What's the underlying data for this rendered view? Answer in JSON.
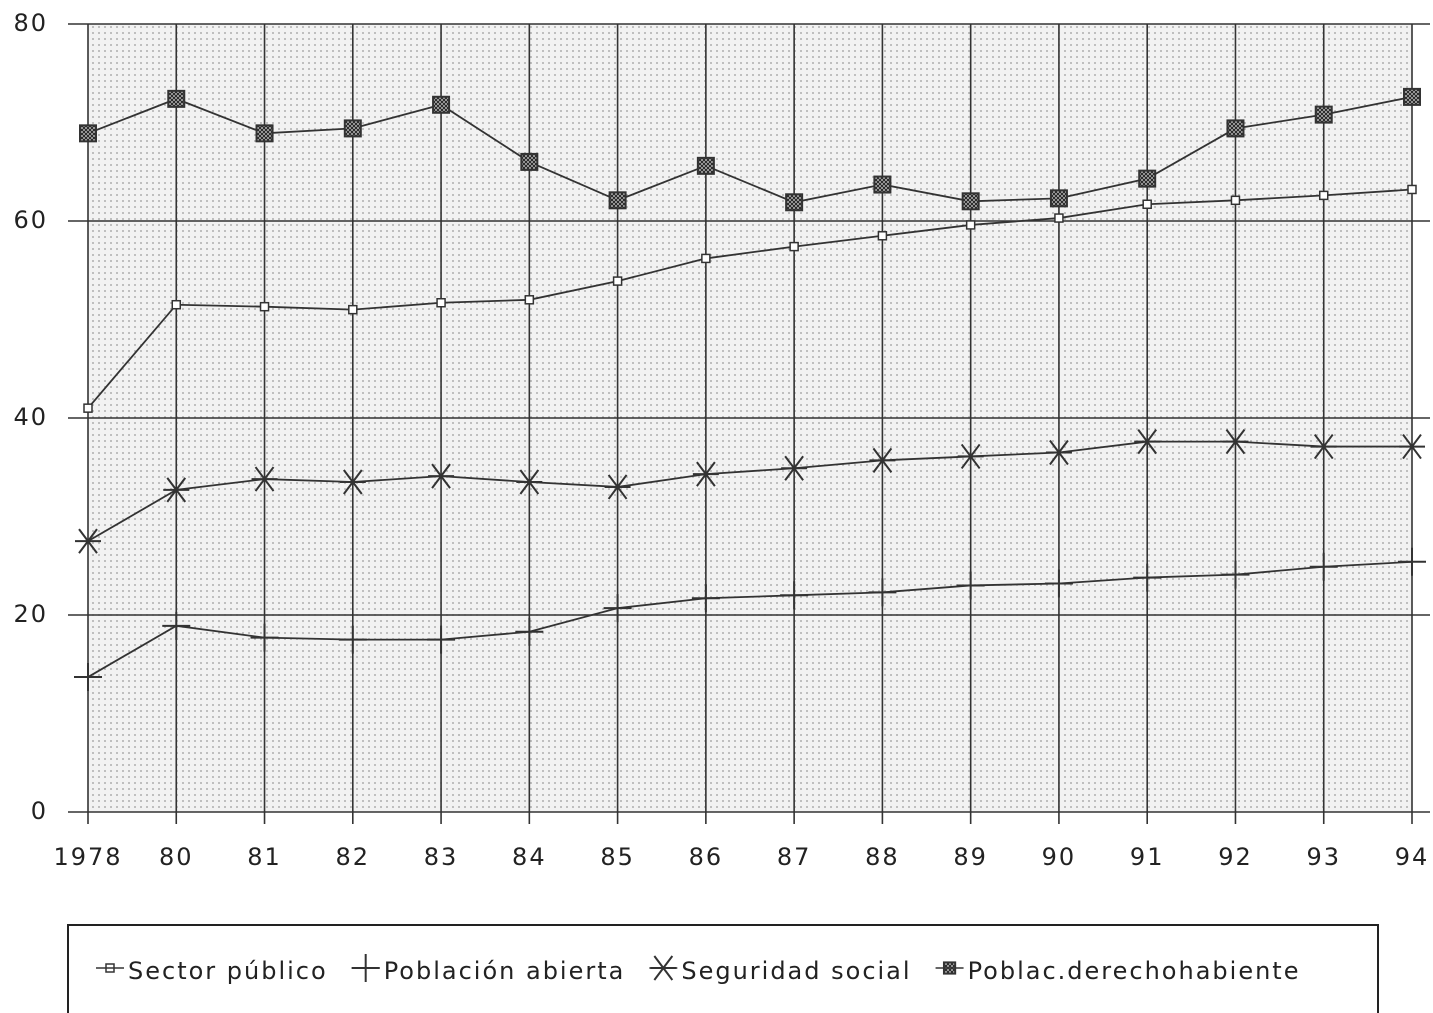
{
  "chart_data": {
    "type": "line",
    "categories": [
      "1978",
      "80",
      "81",
      "82",
      "83",
      "84",
      "85",
      "86",
      "87",
      "88",
      "89",
      "90",
      "91",
      "92",
      "93",
      "94"
    ],
    "series": [
      {
        "name": "Sector público",
        "color": "#333333",
        "marker": "square",
        "values": [
          41.0,
          51.5,
          51.3,
          51.0,
          51.7,
          52.0,
          53.9,
          56.2,
          57.4,
          58.5,
          59.6,
          60.3,
          61.7,
          62.1,
          62.6,
          63.2
        ]
      },
      {
        "name": "Población abierta",
        "color": "#333333",
        "marker": "plus",
        "values": [
          13.7,
          18.9,
          17.7,
          17.5,
          17.5,
          18.3,
          20.7,
          21.7,
          22.0,
          22.3,
          23.0,
          23.2,
          23.8,
          24.1,
          24.9,
          25.4
        ]
      },
      {
        "name": "Seguridad social",
        "color": "#333333",
        "marker": "asterisk",
        "values": [
          27.5,
          32.7,
          33.8,
          33.5,
          34.1,
          33.5,
          33.0,
          34.3,
          34.9,
          35.7,
          36.1,
          36.5,
          37.6,
          37.6,
          37.1,
          37.1
        ]
      },
      {
        "name": "Poblac.derechohabiente",
        "color": "#333333",
        "marker": "hatched-square",
        "values": [
          68.9,
          72.4,
          68.9,
          69.4,
          71.8,
          66.0,
          62.1,
          65.6,
          61.9,
          63.7,
          62.0,
          62.3,
          64.3,
          69.4,
          70.8,
          72.6
        ]
      }
    ],
    "ylim": [
      0,
      80
    ],
    "yticks": [
      0,
      20,
      40,
      60,
      80
    ],
    "grid": true
  }
}
